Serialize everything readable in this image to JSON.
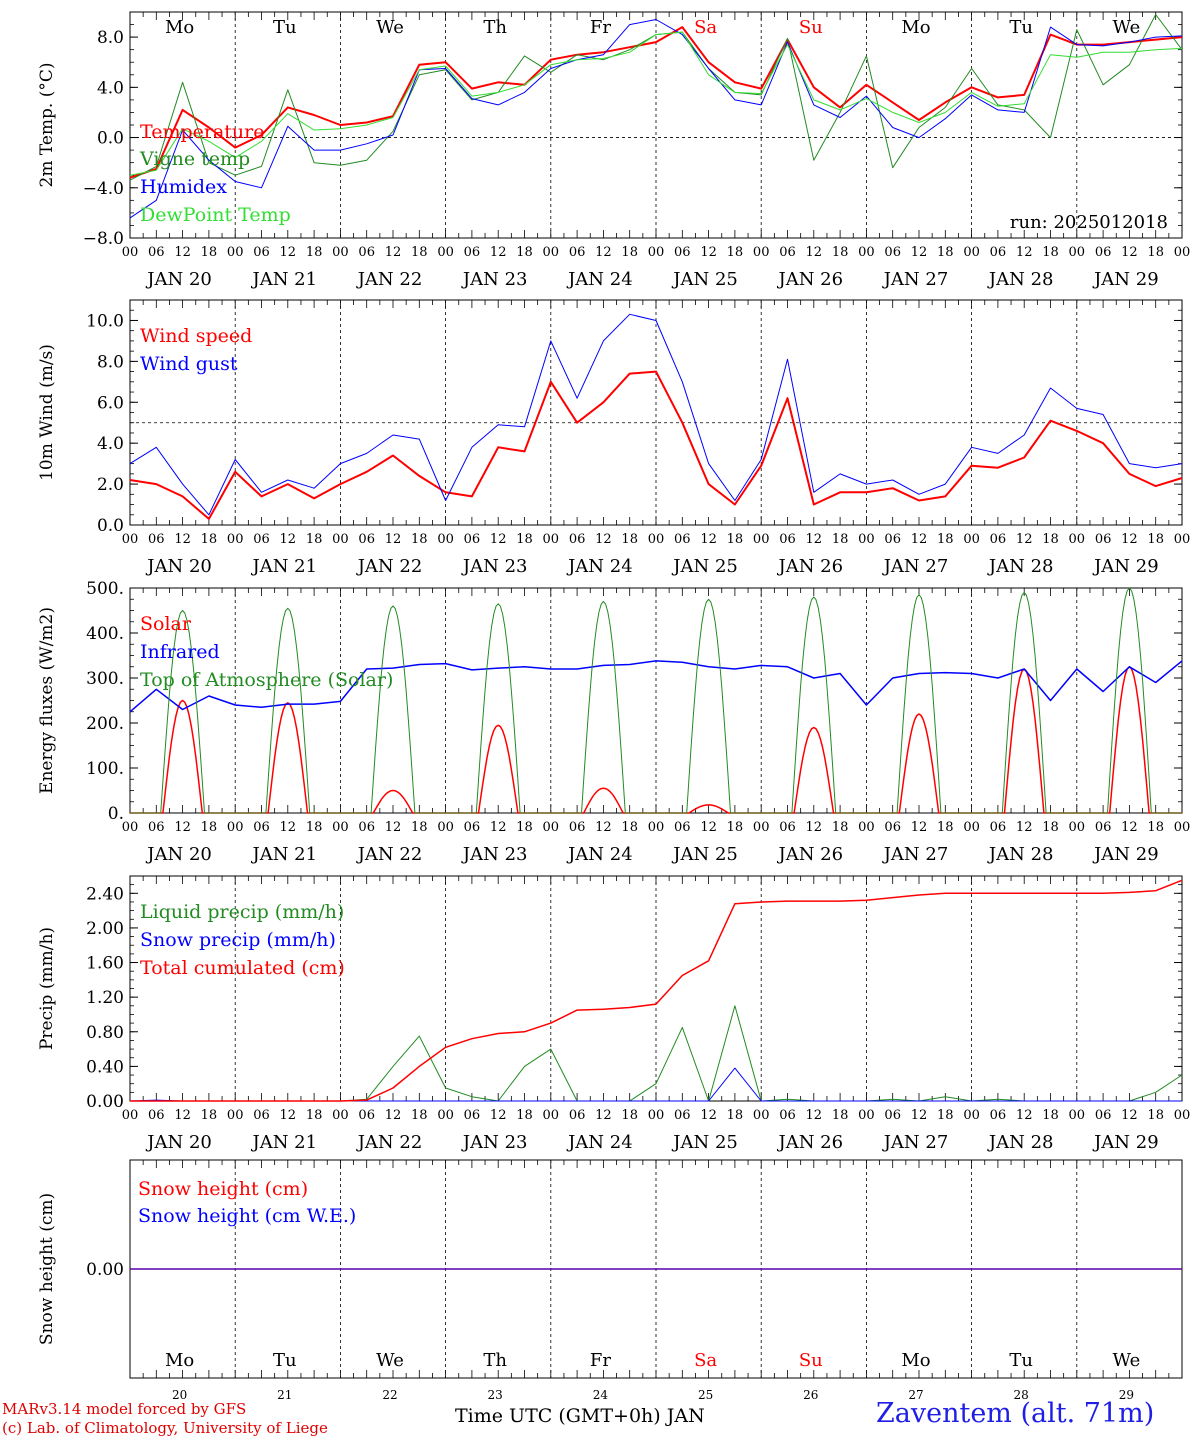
{
  "days": {
    "names": [
      "Mo",
      "Tu",
      "We",
      "Th",
      "Fr",
      "Sa",
      "Su",
      "Mo",
      "Tu",
      "We"
    ],
    "weekend_flags": [
      false,
      false,
      false,
      false,
      false,
      true,
      true,
      false,
      false,
      false
    ],
    "dates": [
      "JAN 20",
      "JAN 21",
      "JAN 22",
      "JAN 23",
      "JAN 24",
      "JAN 25",
      "JAN 26",
      "JAN 27",
      "JAN 28",
      "JAN 29"
    ],
    "numbers": [
      "20",
      "21",
      "22",
      "23",
      "24",
      "25",
      "26",
      "27",
      "28",
      "29"
    ]
  },
  "hour_ticks": [
    "00",
    "06",
    "12",
    "18"
  ],
  "colors": {
    "red": "#ff0000",
    "green": "#228b22",
    "blue": "#0000ff",
    "light_green": "#33dd33",
    "weekend": "#ff0000",
    "station": "#1e1ee6"
  },
  "footer": {
    "credit_line1": "MARv3.14 model forced by GFS",
    "credit_line2": "(c) Lab. of Climatology, University of Liege",
    "x_title": "Time UTC (GMT+0h) JAN",
    "station": "Zaventem (alt. 71m)"
  },
  "chart_data": [
    {
      "type": "line",
      "ylabel": "2m Temp. (°C)",
      "ylim": [
        -8,
        10
      ],
      "yticks": [
        -8,
        -4,
        0,
        4,
        8
      ],
      "ytick_labels": [
        "−8.0",
        "−4.0",
        "0.0",
        "4.0",
        "8.0"
      ],
      "ref_line": 0,
      "annotation": "run: 2025012018",
      "legend_position": "left",
      "x_hours_from_jan20": [
        0,
        6,
        12,
        18,
        24,
        30,
        36,
        42,
        48,
        54,
        60,
        66,
        72,
        78,
        84,
        90,
        96,
        102,
        108,
        114,
        120,
        126,
        132,
        138,
        144,
        150,
        156,
        162,
        168,
        174,
        180,
        186,
        192,
        198,
        204,
        210,
        216,
        222,
        228,
        234,
        240
      ],
      "series": [
        {
          "name": "Temperature",
          "color": "red",
          "width": 2,
          "values": [
            -3.2,
            -2.5,
            2.2,
            0.8,
            -0.8,
            0.2,
            2.4,
            1.8,
            1.0,
            1.2,
            1.7,
            5.8,
            6.0,
            3.9,
            4.4,
            4.2,
            6.2,
            6.6,
            6.8,
            7.2,
            7.6,
            8.8,
            6.0,
            4.4,
            3.9,
            7.8,
            4.0,
            2.4,
            4.2,
            2.8,
            1.4,
            2.8,
            4.0,
            3.2,
            3.4,
            8.2,
            7.4,
            7.4,
            7.6,
            7.8,
            8.0
          ]
        },
        {
          "name": "Vigne temp",
          "color": "green",
          "width": 1,
          "values": [
            -3.4,
            -2.3,
            4.4,
            -2.0,
            -3.0,
            -2.3,
            3.8,
            -2.0,
            -2.2,
            -1.8,
            0.5,
            5.0,
            5.4,
            3.0,
            3.6,
            6.5,
            5.2,
            6.6,
            6.2,
            7.0,
            8.2,
            8.4,
            5.5,
            3.6,
            3.4,
            7.9,
            -1.8,
            2.0,
            6.5,
            -2.4,
            0.8,
            2.4,
            5.5,
            2.6,
            2.2,
            0.0,
            8.6,
            4.2,
            5.8,
            9.8,
            7.0
          ]
        },
        {
          "name": "Humidex",
          "color": "blue",
          "width": 1,
          "values": [
            -6.4,
            -5.0,
            0.6,
            -1.8,
            -3.5,
            -4.0,
            0.9,
            -1.0,
            -1.0,
            -0.5,
            0.2,
            5.4,
            5.5,
            3.1,
            2.6,
            3.6,
            5.5,
            6.2,
            6.6,
            9.0,
            9.4,
            8.2,
            5.5,
            3.0,
            2.6,
            7.6,
            2.6,
            1.6,
            3.3,
            0.8,
            0.0,
            1.5,
            3.4,
            2.2,
            2.0,
            8.8,
            7.4,
            7.3,
            7.6,
            8.0,
            8.1
          ]
        },
        {
          "name": "DewPoint Temp",
          "color": "light_green",
          "width": 1,
          "values": [
            -3.0,
            -2.6,
            0.7,
            -0.3,
            -1.6,
            -0.3,
            1.9,
            0.6,
            0.7,
            1.0,
            1.6,
            5.4,
            5.7,
            3.3,
            3.6,
            4.2,
            5.8,
            6.2,
            6.3,
            6.8,
            8.2,
            8.4,
            5.0,
            3.6,
            3.5,
            7.4,
            3.0,
            2.2,
            3.1,
            2.0,
            1.2,
            2.0,
            3.6,
            2.5,
            2.7,
            6.6,
            6.4,
            6.8,
            6.8,
            7.0,
            7.1
          ]
        }
      ]
    },
    {
      "type": "line",
      "ylabel": "10m Wind (m/s)",
      "ylim": [
        0,
        11
      ],
      "yticks": [
        0,
        2,
        4,
        6,
        8,
        10
      ],
      "ytick_labels": [
        "0.0",
        "2.0",
        "4.0",
        "6.0",
        "8.0",
        "10.0"
      ],
      "ref_line": 5,
      "legend_position": "left",
      "x_hours_from_jan20": [
        0,
        6,
        12,
        18,
        24,
        30,
        36,
        42,
        48,
        54,
        60,
        66,
        72,
        78,
        84,
        90,
        96,
        102,
        108,
        114,
        120,
        126,
        132,
        138,
        144,
        150,
        156,
        162,
        168,
        174,
        180,
        186,
        192,
        198,
        204,
        210,
        216,
        222,
        228,
        234,
        240
      ],
      "series": [
        {
          "name": "Wind speed",
          "color": "red",
          "width": 2,
          "values": [
            2.2,
            2.0,
            1.4,
            0.3,
            2.6,
            1.4,
            2.0,
            1.3,
            2.0,
            2.6,
            3.4,
            2.4,
            1.6,
            1.4,
            3.8,
            3.6,
            7.0,
            5.0,
            6.0,
            7.4,
            7.5,
            5.0,
            2.0,
            1.0,
            2.9,
            6.2,
            1.0,
            1.6,
            1.6,
            1.8,
            1.2,
            1.4,
            2.9,
            2.8,
            3.3,
            5.1,
            4.6,
            4.0,
            2.5,
            1.9,
            2.3
          ]
        },
        {
          "name": "Wind gust",
          "color": "blue",
          "width": 1,
          "values": [
            3.0,
            3.8,
            2.0,
            0.5,
            3.2,
            1.6,
            2.2,
            1.8,
            3.0,
            3.5,
            4.4,
            4.2,
            1.2,
            3.8,
            4.9,
            4.8,
            9.0,
            6.2,
            9.0,
            10.3,
            10.0,
            7.0,
            3.0,
            1.2,
            3.2,
            8.1,
            1.6,
            2.5,
            2.0,
            2.2,
            1.5,
            2.0,
            3.8,
            3.5,
            4.4,
            6.7,
            5.7,
            5.4,
            3.0,
            2.8,
            3.0
          ]
        }
      ]
    },
    {
      "type": "line",
      "ylabel": "Energy fluxes (W/m2)",
      "ylim": [
        0,
        500
      ],
      "yticks": [
        0,
        100,
        200,
        300,
        400,
        500
      ],
      "ytick_labels": [
        "0.",
        "100.",
        "200.",
        "300.",
        "400.",
        "500."
      ],
      "legend_position": "left",
      "daily_peaks": {
        "solar": [
          250,
          245,
          50,
          195,
          55,
          18,
          190,
          220,
          320,
          325
        ],
        "top_of_atmosphere": [
          450,
          455,
          460,
          465,
          470,
          475,
          480,
          485,
          490,
          500
        ]
      },
      "series": [
        {
          "name": "Solar",
          "color": "red",
          "width": 1.5,
          "values": [
            0,
            250,
            0,
            245,
            0,
            50,
            0,
            195,
            0,
            55,
            0,
            18,
            0,
            190,
            0,
            220,
            0,
            320,
            0,
            325
          ]
        },
        {
          "name": "Infrared",
          "color": "blue",
          "width": 1.5,
          "x_hours_from_jan20": [
            0,
            6,
            12,
            18,
            24,
            30,
            36,
            42,
            48,
            54,
            60,
            66,
            72,
            78,
            84,
            90,
            96,
            102,
            108,
            114,
            120,
            126,
            132,
            138,
            144,
            150,
            156,
            162,
            168,
            174,
            180,
            186,
            192,
            198,
            204,
            210,
            216,
            222,
            228,
            234,
            240
          ],
          "values": [
            225,
            275,
            230,
            260,
            240,
            235,
            242,
            242,
            248,
            320,
            322,
            330,
            332,
            318,
            322,
            325,
            320,
            320,
            328,
            330,
            338,
            335,
            325,
            320,
            328,
            325,
            300,
            310,
            240,
            300,
            310,
            312,
            310,
            300,
            320,
            250,
            320,
            270,
            325,
            290,
            338
          ]
        },
        {
          "name": "Top of Atmosphere (Solar)",
          "color": "green",
          "width": 1,
          "values": [
            0,
            450,
            0,
            455,
            0,
            460,
            0,
            465,
            0,
            470,
            0,
            475,
            0,
            480,
            0,
            485,
            0,
            490,
            0,
            500
          ]
        }
      ]
    },
    {
      "type": "line",
      "ylabel": "Precip (mm/h)",
      "ylim": [
        0,
        2.6
      ],
      "yticks": [
        0,
        0.4,
        0.8,
        1.2,
        1.6,
        2.0,
        2.4
      ],
      "ytick_labels": [
        "0.00",
        "0.40",
        "0.80",
        "1.20",
        "1.60",
        "2.00",
        "2.40"
      ],
      "legend_position": "left",
      "x_hours_from_jan20": [
        0,
        6,
        12,
        18,
        24,
        30,
        36,
        42,
        48,
        54,
        60,
        66,
        72,
        78,
        84,
        90,
        96,
        102,
        108,
        114,
        120,
        126,
        132,
        138,
        144,
        150,
        156,
        162,
        168,
        174,
        180,
        186,
        192,
        198,
        204,
        210,
        216,
        222,
        228,
        234,
        240
      ],
      "series": [
        {
          "name": "Liquid precip (mm/h)",
          "color": "green",
          "width": 1,
          "values": [
            0,
            0,
            0,
            0,
            0,
            0,
            0,
            0,
            0,
            0.02,
            0.4,
            0.75,
            0.15,
            0.05,
            0,
            0.4,
            0.6,
            0,
            0,
            0,
            0.2,
            0.85,
            0.0,
            1.1,
            0,
            0.02,
            0,
            0,
            0,
            0.02,
            0,
            0.05,
            0,
            0.02,
            0,
            0,
            0,
            0,
            0,
            0.1,
            0.3
          ]
        },
        {
          "name": "Snow precip (mm/h)",
          "color": "blue",
          "width": 1,
          "values": [
            0,
            0.01,
            0,
            0,
            0,
            0,
            0,
            0,
            0,
            0,
            0,
            0,
            0,
            0,
            0,
            0,
            0,
            0,
            0,
            0,
            0,
            0,
            0,
            0.38,
            0,
            0,
            0,
            0,
            0,
            0,
            0,
            0,
            0,
            0,
            0,
            0,
            0,
            0,
            0,
            0,
            0
          ]
        },
        {
          "name": "Total cumulated (cm)",
          "color": "red",
          "width": 1.5,
          "values": [
            0,
            0,
            0,
            0,
            0,
            0,
            0,
            0,
            0,
            0.01,
            0.15,
            0.4,
            0.62,
            0.72,
            0.78,
            0.8,
            0.9,
            1.05,
            1.06,
            1.08,
            1.12,
            1.45,
            1.62,
            2.28,
            2.3,
            2.31,
            2.31,
            2.31,
            2.32,
            2.35,
            2.38,
            2.4,
            2.4,
            2.4,
            2.4,
            2.4,
            2.4,
            2.4,
            2.41,
            2.43,
            2.55
          ]
        }
      ]
    },
    {
      "type": "line",
      "ylabel": "Snow height (cm)",
      "ylim": [
        -1,
        1
      ],
      "yticks": [
        0
      ],
      "ytick_labels": [
        "0.00"
      ],
      "legend_position": "left",
      "series": [
        {
          "name": "Snow height (cm)",
          "color": "red",
          "width": 1.5,
          "values": [
            0,
            0
          ]
        },
        {
          "name": "Snow height (cm W.E.)",
          "color": "blue",
          "width": 1,
          "values": [
            0,
            0
          ]
        }
      ]
    }
  ]
}
